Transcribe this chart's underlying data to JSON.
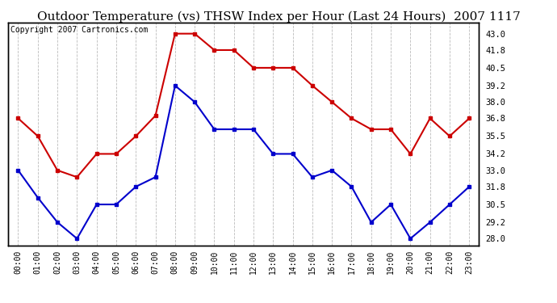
{
  "title": "Outdoor Temperature (vs) THSW Index per Hour (Last 24 Hours)  2007 1117",
  "copyright": "Copyright 2007 Cartronics.com",
  "hours": [
    "00:00",
    "01:00",
    "02:00",
    "03:00",
    "04:00",
    "05:00",
    "06:00",
    "07:00",
    "08:00",
    "09:00",
    "10:00",
    "11:00",
    "12:00",
    "13:00",
    "14:00",
    "15:00",
    "16:00",
    "17:00",
    "18:00",
    "19:00",
    "20:00",
    "21:00",
    "22:00",
    "23:00"
  ],
  "thsw": [
    36.8,
    35.5,
    33.0,
    32.5,
    34.2,
    34.2,
    35.5,
    37.0,
    43.0,
    43.0,
    41.8,
    41.8,
    40.5,
    40.5,
    40.5,
    39.2,
    38.0,
    36.8,
    36.0,
    36.0,
    34.2,
    36.8,
    35.5,
    36.8
  ],
  "temp": [
    33.0,
    31.0,
    29.2,
    28.0,
    30.5,
    30.5,
    31.8,
    32.5,
    39.2,
    38.0,
    36.0,
    36.0,
    36.0,
    34.2,
    34.2,
    32.5,
    33.0,
    31.8,
    29.2,
    30.5,
    28.0,
    29.2,
    30.5,
    31.8
  ],
  "thsw_color": "#cc0000",
  "temp_color": "#0000cc",
  "background_color": "#ffffff",
  "plot_background": "#ffffff",
  "grid_color": "#bbbbbb",
  "ylim": [
    27.5,
    43.8
  ],
  "yticks_right": [
    28.0,
    29.2,
    30.5,
    31.8,
    33.0,
    34.2,
    35.5,
    36.8,
    38.0,
    39.2,
    40.5,
    41.8,
    43.0
  ],
  "title_fontsize": 11,
  "copyright_fontsize": 7,
  "marker": "s",
  "markersize": 3.5,
  "linewidth": 1.5
}
